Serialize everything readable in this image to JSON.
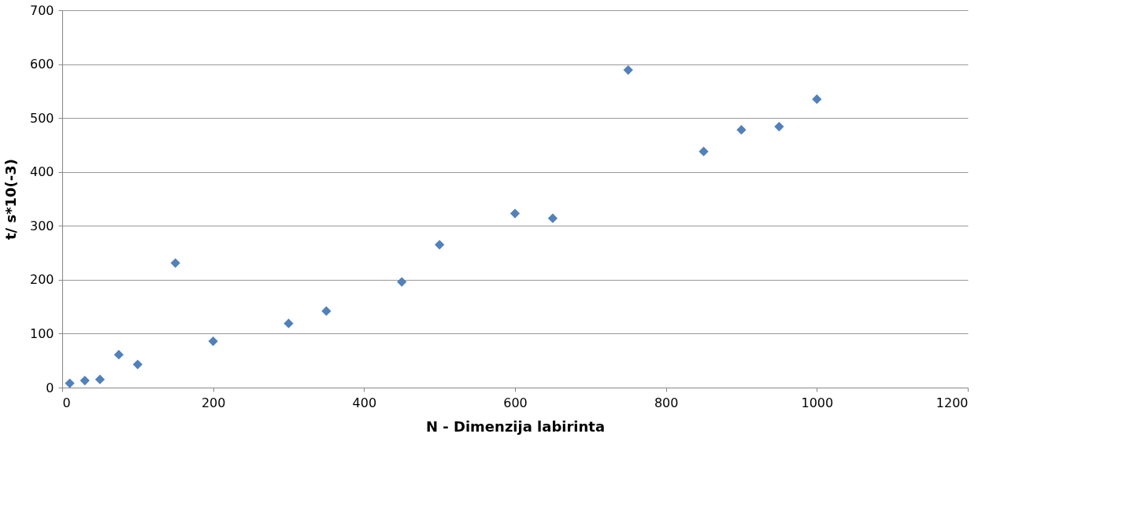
{
  "chart_data": {
    "type": "scatter",
    "xlabel": "N - Dimenzija labirinta",
    "ylabel": "t/ s*10(-3)",
    "x": [
      10,
      30,
      50,
      75,
      100,
      150,
      200,
      300,
      350,
      450,
      500,
      600,
      650,
      750,
      850,
      900,
      950,
      1000
    ],
    "series": [
      {
        "color": "#4f81bd",
        "values": [
          8,
          13,
          15,
          61,
          43,
          231,
          86,
          119,
          142,
          196,
          265,
          323,
          314,
          589,
          438,
          478,
          484,
          535
        ]
      }
    ],
    "xlim": [
      0,
      1200
    ],
    "xticks": [
      0,
      200,
      400,
      600,
      800,
      1000,
      1200
    ],
    "ylim": [
      0,
      700
    ],
    "yticks": [
      0,
      100,
      200,
      300,
      400,
      500,
      600,
      700
    ],
    "grid": "y",
    "marker": "diamond",
    "legend": false
  }
}
